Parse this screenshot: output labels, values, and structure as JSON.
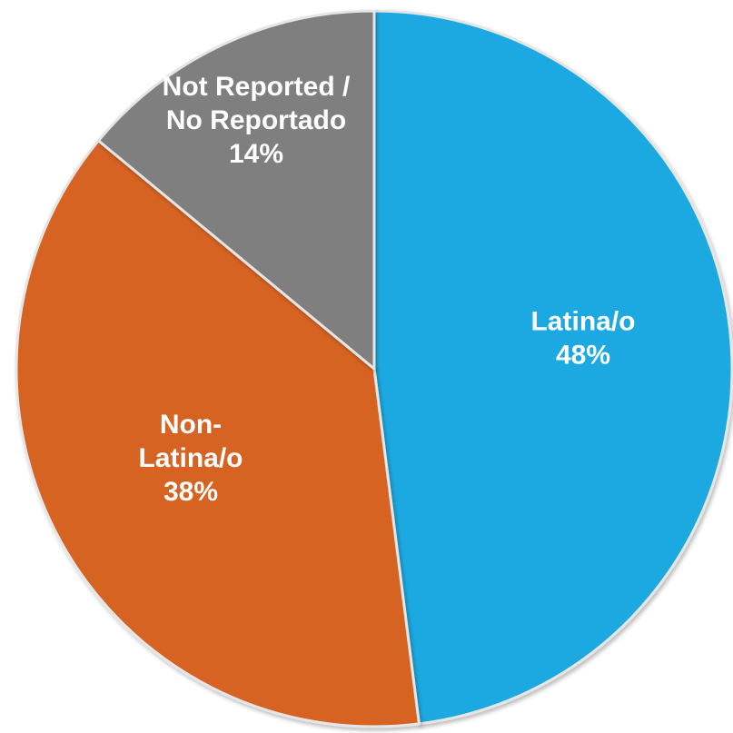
{
  "chart_data": {
    "type": "pie",
    "title": "",
    "slices": [
      {
        "name": "Latina/o",
        "label_lines": [
          "Latina/o"
        ],
        "value": 48,
        "value_label": "48%",
        "color": "#1FA9E1"
      },
      {
        "name": "Non-Latina/o",
        "label_lines": [
          "Non-",
          "Latina/o"
        ],
        "value": 38,
        "value_label": "38%",
        "color": "#D66324"
      },
      {
        "name": "Not Reported / No Reportado",
        "label_lines": [
          "Not Reported /",
          "No Reportado"
        ],
        "value": 14,
        "value_label": "14%",
        "color": "#7F7F7F"
      }
    ],
    "start_angle": "12 o'clock",
    "direction": "clockwise",
    "legend": "none",
    "label_color": "#FFFFFF"
  }
}
